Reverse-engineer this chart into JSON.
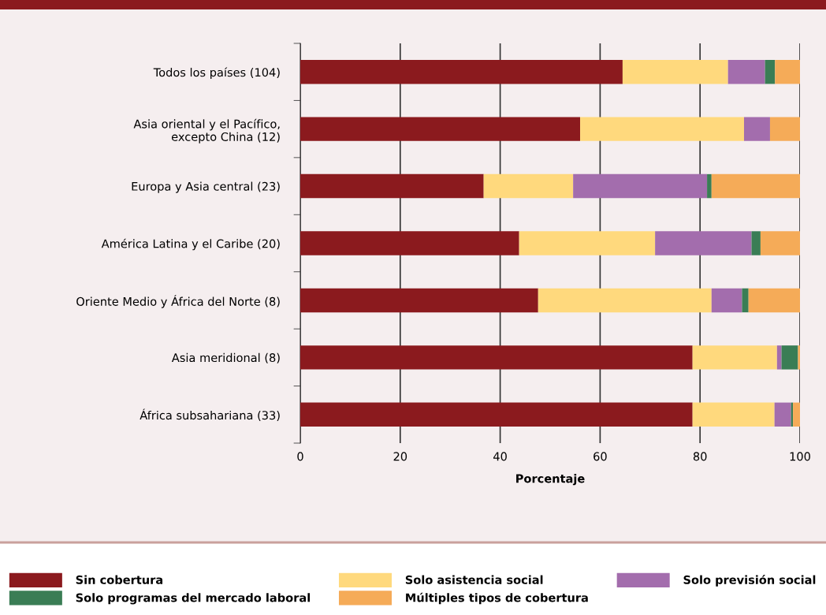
{
  "chart_data": {
    "type": "bar",
    "orientation": "horizontal",
    "stacked": true,
    "xlabel": "Porcentaje",
    "categories": [
      "Todos los países (104)",
      "Asia oriental y el Pacífico,\nexcepto China (12)",
      "Europa y Asia central (23)",
      "América Latina y el Caribe (20)",
      "Oriente Medio y África del Norte (8)",
      "Asia meridional (8)",
      "África subsahariana (33)"
    ],
    "series": [
      {
        "name": "Sin cobertura",
        "color": "#8b1a1e",
        "values": [
          64.5,
          56.0,
          36.7,
          43.8,
          47.6,
          78.5,
          78.5
        ]
      },
      {
        "name": "Solo asistencia social",
        "color": "#ffd97d",
        "values": [
          21.1,
          32.8,
          17.9,
          27.2,
          34.7,
          16.9,
          16.4
        ]
      },
      {
        "name": "Solo previsión social",
        "color": "#a36dad",
        "values": [
          7.4,
          5.2,
          26.8,
          19.3,
          6.1,
          0.9,
          3.3
        ]
      },
      {
        "name": "Solo programas del mercado laboral",
        "color": "#3a7d55",
        "values": [
          2.0,
          0,
          0.9,
          1.8,
          1.3,
          3.3,
          0.4
        ]
      },
      {
        "name": "Múltiples tipos de cobertura",
        "color": "#f5ab58",
        "values": [
          5.0,
          6.0,
          17.7,
          7.9,
          10.3,
          0.4,
          1.4
        ]
      }
    ],
    "xlim": [
      0,
      100
    ],
    "xticks": [
      0,
      20,
      40,
      60,
      80,
      100
    ],
    "grid": "x",
    "legend": "bottom"
  }
}
